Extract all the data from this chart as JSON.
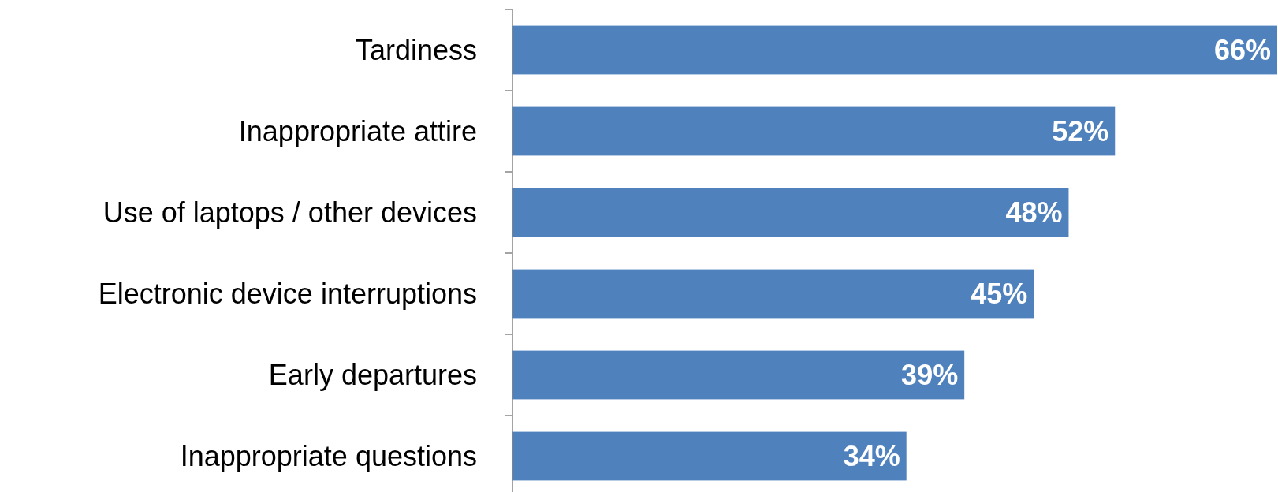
{
  "chart_data": {
    "type": "bar",
    "orientation": "horizontal",
    "categories": [
      "Tardiness",
      "Inappropriate attire",
      "Use of laptops / other devices",
      "Electronic device interruptions",
      "Early departures",
      "Inappropriate questions"
    ],
    "values": [
      66,
      52,
      48,
      45,
      39,
      34
    ],
    "value_labels": [
      "66%",
      "52%",
      "48%",
      "45%",
      "39%",
      "34%"
    ],
    "color": "#4f81bd"
  }
}
